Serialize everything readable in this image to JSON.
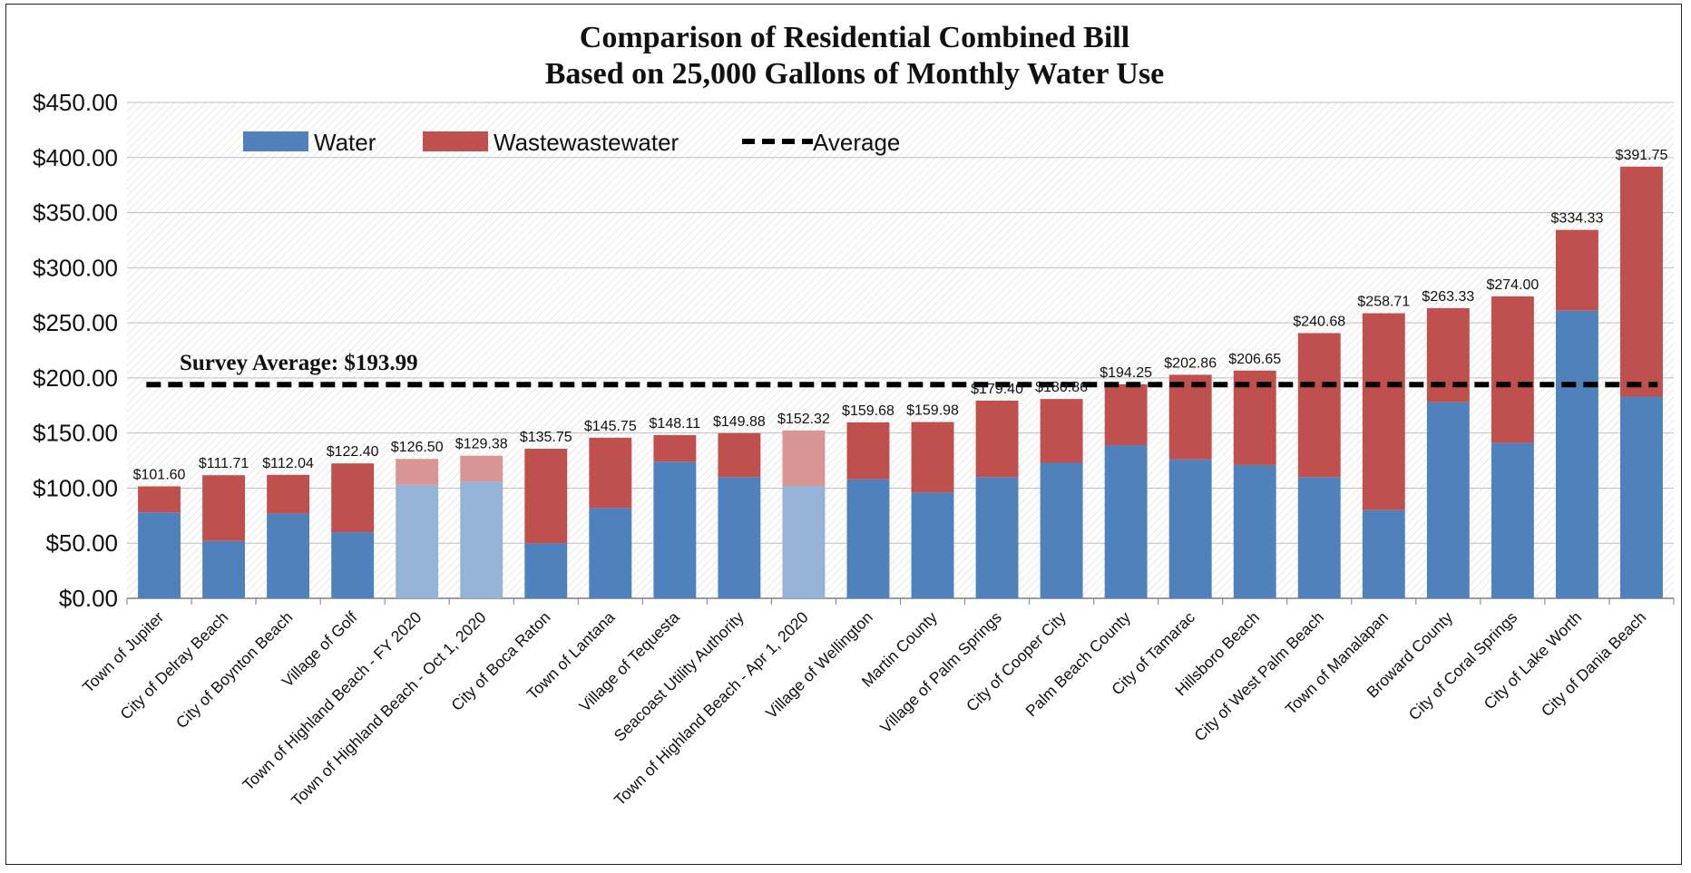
{
  "chart_data": {
    "type": "bar",
    "stacked": true,
    "title_lines": [
      "Comparison of Residential Combined Bill",
      "Based on 25,000 Gallons of Monthly Water Use"
    ],
    "ylim": [
      0,
      450
    ],
    "yticks": [
      0,
      50,
      100,
      150,
      200,
      250,
      300,
      350,
      400,
      450
    ],
    "ytick_labels": [
      "$0.00",
      "$50.00",
      "$100.00",
      "$150.00",
      "$200.00",
      "$250.00",
      "$300.00",
      "$350.00",
      "$400.00",
      "$450.00"
    ],
    "grid": true,
    "legend_position": "top-left",
    "legend": [
      {
        "name": "Water",
        "kind": "bar",
        "color": "#4f81bd"
      },
      {
        "name": "Wastewastewater",
        "kind": "bar",
        "color": "#c0504d"
      },
      {
        "name": "Average",
        "kind": "dashed-line",
        "color": "#000000"
      }
    ],
    "colors": {
      "water": "#4f81bd",
      "wastewater": "#c0504d",
      "water_light": "#95b3d7",
      "wastewater_light": "#d99594",
      "average": "#000000"
    },
    "average": {
      "value": 193.99,
      "label": "Survey Average: $193.99"
    },
    "categories": [
      "Town of Jupiter",
      "City of Delray Beach",
      "City of Boynton Beach",
      "Village of Golf",
      "Town of Highland Beach - FY 2020",
      "Town of Highland Beach - Oct 1, 2020",
      "City of Boca Raton",
      "Town of Lantana",
      "Village of Tequesta",
      "Seacoast Utility Authority",
      "Town of Highland Beach - Apr 1, 2020",
      "Village of Wellington",
      "Martin County",
      "Village of Palm Springs",
      "City of Cooper City",
      "Palm Beach County",
      "City of Tamarac",
      "Hillsboro Beach",
      "City of West Palm Beach",
      "Town of Manalapan",
      "Broward County",
      "City of Coral Springs",
      "City of Lake Worth",
      "City of Dania Beach"
    ],
    "series": [
      {
        "name": "Water",
        "values": [
          78,
          52,
          77,
          60,
          103,
          106,
          50,
          82,
          124,
          110,
          102,
          108,
          96,
          110,
          123,
          139,
          126,
          121,
          110,
          80,
          178,
          141,
          261,
          183
        ]
      },
      {
        "name": "Wastewastewater",
        "values": [
          23.6,
          59.71,
          35.04,
          62.4,
          23.5,
          23.38,
          85.75,
          63.75,
          24.11,
          39.88,
          50.32,
          51.68,
          63.98,
          69.4,
          57.86,
          55.25,
          76.86,
          85.65,
          130.68,
          178.71,
          85.33,
          133.0,
          73.33,
          208.75
        ]
      }
    ],
    "totals": [
      101.6,
      111.71,
      112.04,
      122.4,
      126.5,
      129.38,
      135.75,
      145.75,
      148.11,
      149.88,
      152.32,
      159.68,
      159.98,
      179.4,
      180.86,
      194.25,
      202.86,
      206.65,
      240.68,
      258.71,
      263.33,
      274.0,
      334.33,
      391.75
    ],
    "total_labels": [
      "$101.60",
      "$111.71",
      "$112.04",
      "$122.40",
      "$126.50",
      "$129.38",
      "$135.75",
      "$145.75",
      "$148.11",
      "$149.88",
      "$152.32",
      "$159.68",
      "$159.98",
      "$179.40",
      "$180.86",
      "$194.25",
      "$202.86",
      "$206.65",
      "$240.68",
      "$258.71",
      "$263.33",
      "$274.00",
      "$334.33",
      "$391.75"
    ],
    "highlighted_light": [
      4,
      5,
      10
    ]
  }
}
